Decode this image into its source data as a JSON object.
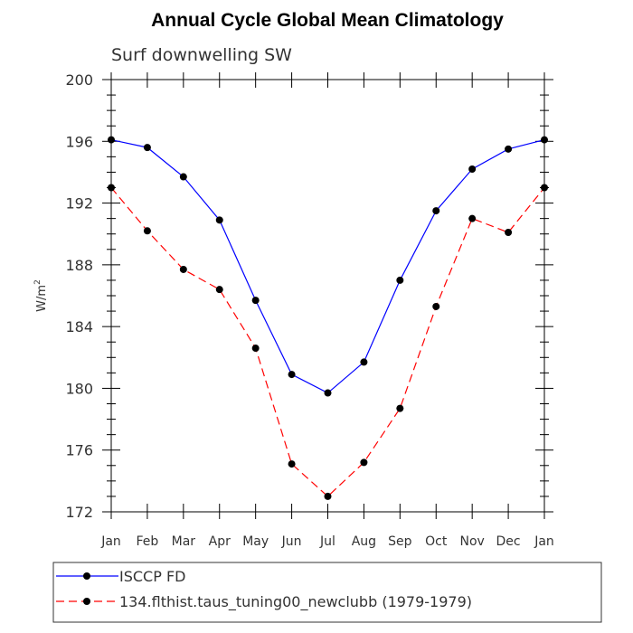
{
  "chart_data": {
    "type": "line",
    "title": "Annual Cycle Global Mean Climatology",
    "subtitle": "Surf downwelling SW",
    "ylabel": "W/m",
    "ylabel_superscript": "2",
    "xlabel": "",
    "ylim": [
      172,
      200
    ],
    "yticks": [
      "200",
      "196",
      "192",
      "188",
      "184",
      "180",
      "176",
      "172"
    ],
    "categories": [
      "Jan",
      "Feb",
      "Mar",
      "Apr",
      "May",
      "Jun",
      "Jul",
      "Aug",
      "Sep",
      "Oct",
      "Nov",
      "Dec",
      "Jan"
    ],
    "grid": false,
    "legend_placement": "bottom",
    "series": [
      {
        "name": "ISCCP FD",
        "color": "#0000ff",
        "dash": "solid",
        "values": [
          196.1,
          195.6,
          193.7,
          190.9,
          185.7,
          180.9,
          179.7,
          181.7,
          187.0,
          191.5,
          194.2,
          195.5,
          196.1
        ]
      },
      {
        "name": "134.flthist.taus_tuning00_newclubb (1979-1979)",
        "color": "#ff0000",
        "dash": "dashed",
        "values": [
          193.0,
          190.2,
          187.7,
          186.4,
          182.6,
          175.1,
          173.0,
          175.2,
          178.7,
          185.3,
          191.0,
          190.1,
          193.0
        ]
      }
    ]
  }
}
